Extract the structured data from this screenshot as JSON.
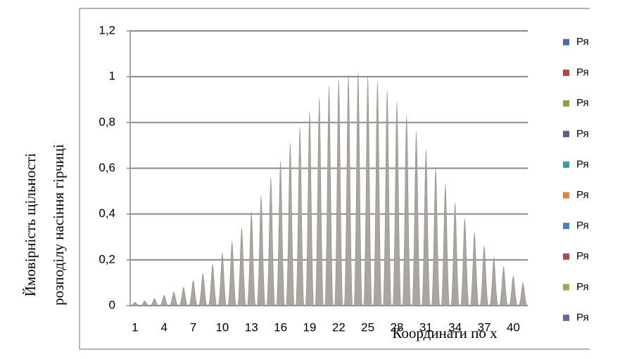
{
  "chart_data": {
    "type": "area-peaks",
    "y_label_lines": [
      "Ймовірність щільності",
      "розподілу  насіння гірчиці"
    ],
    "x_label": "Координати  по x",
    "categories": [
      "1",
      null,
      null,
      "4",
      null,
      null,
      "7",
      null,
      null,
      "10",
      null,
      null,
      "13",
      null,
      null,
      "16",
      null,
      null,
      "19",
      null,
      null,
      "22",
      null,
      null,
      "25",
      null,
      null,
      "28",
      null,
      null,
      "31",
      null,
      null,
      "34",
      null,
      null,
      "37",
      null,
      null,
      "40",
      null
    ],
    "values": [
      0.015,
      0.02,
      0.03,
      0.045,
      0.06,
      0.08,
      0.11,
      0.14,
      0.18,
      0.23,
      0.28,
      0.34,
      0.41,
      0.48,
      0.56,
      0.63,
      0.71,
      0.78,
      0.85,
      0.91,
      0.96,
      0.99,
      1.01,
      1.02,
      1.0,
      0.98,
      0.94,
      0.89,
      0.83,
      0.76,
      0.68,
      0.6,
      0.53,
      0.45,
      0.38,
      0.32,
      0.26,
      0.21,
      0.17,
      0.13,
      0.1
    ],
    "color": "#a9a59f",
    "ylim": [
      0,
      1.2
    ],
    "yticks": [
      0,
      {
        "value": 0.2,
        "label": "0,2"
      },
      {
        "value": 0.4,
        "label": "0,4"
      },
      {
        "value": 0.6,
        "label": "0,6"
      },
      {
        "value": 0.8,
        "label": "0,8"
      },
      1,
      {
        "value": 1.2,
        "label": "1,2"
      }
    ],
    "grid": true,
    "legend": [
      {
        "name": "Ря",
        "color": "#4a6fa5"
      },
      {
        "name": "Ря",
        "color": "#a84a48"
      },
      {
        "name": "Ря",
        "color": "#86a04e"
      },
      {
        "name": "Ря",
        "color": "#6e5590"
      },
      {
        "name": "Ря",
        "color": "#3f9aa8"
      },
      {
        "name": "Ря",
        "color": "#d9893a"
      },
      {
        "name": "Ря",
        "color": "#4f7dbd"
      },
      {
        "name": "Ря",
        "color": "#b04a48"
      },
      {
        "name": "Ря",
        "color": "#90b050"
      },
      {
        "name": "Ря",
        "color": "#7a5ea0"
      }
    ]
  }
}
